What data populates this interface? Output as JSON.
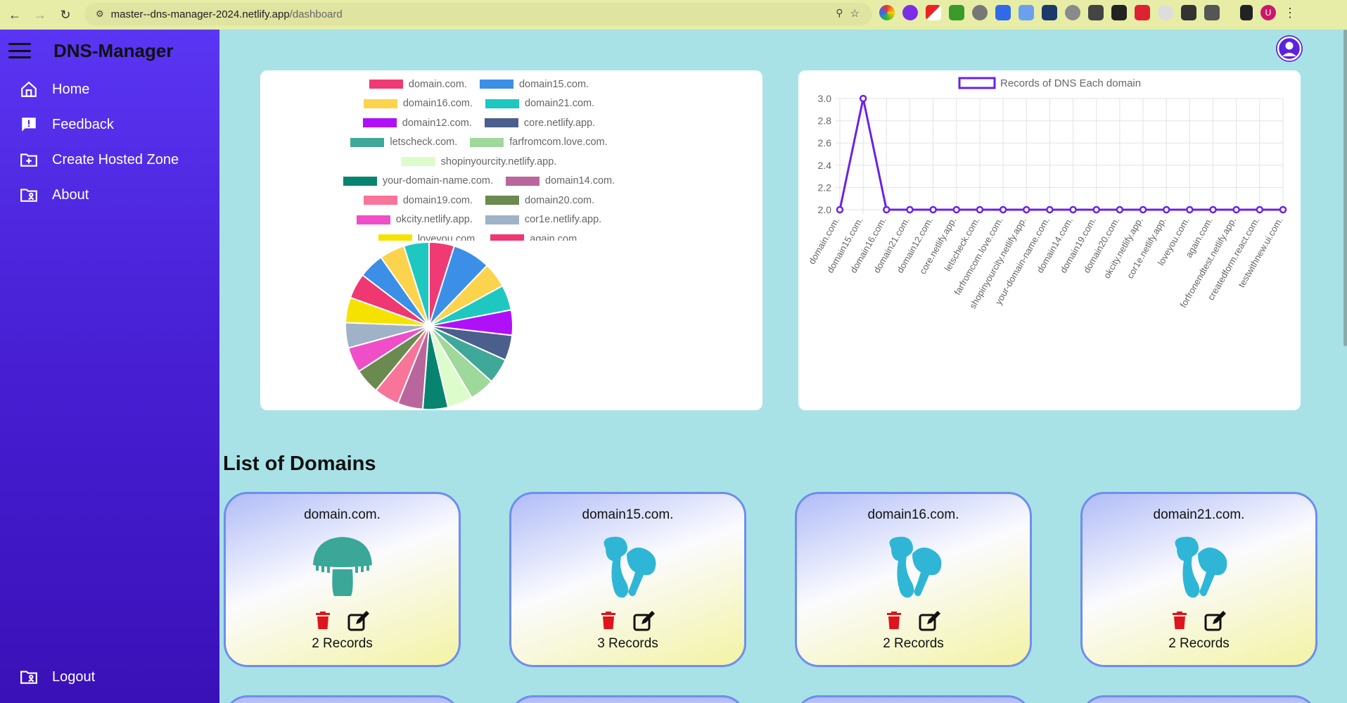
{
  "browser": {
    "url_host": "master--dns-manager-2024.netlify.app",
    "url_path": "/dashboard",
    "profile_initial": "U"
  },
  "sidebar": {
    "brand": "DNS-Manager",
    "items": [
      {
        "label": "Home",
        "icon": "home-icon"
      },
      {
        "label": "Feedback",
        "icon": "feedback-icon"
      },
      {
        "label": "Create Hosted Zone",
        "icon": "folder-add-icon"
      },
      {
        "label": "About",
        "icon": "folder-user-icon"
      }
    ],
    "logout": "Logout"
  },
  "pie_legend": [
    [
      {
        "label": "domain.com.",
        "color": "#f03a73"
      },
      {
        "label": "domain15.com.",
        "color": "#3b8fe6"
      }
    ],
    [
      {
        "label": "domain16.com.",
        "color": "#fcd34d"
      },
      {
        "label": "domain21.com.",
        "color": "#1ec8c0"
      }
    ],
    [
      {
        "label": "domain12.com.",
        "color": "#b010f8"
      },
      {
        "label": "core.netlify.app.",
        "color": "#4a5f8c"
      }
    ],
    [
      {
        "label": "letscheck.com.",
        "color": "#40a898"
      },
      {
        "label": "farfromcom.love.com.",
        "color": "#9ed89a"
      }
    ],
    [
      {
        "label": "shopinyourcity.netlify.app.",
        "color": "#dcfccb"
      }
    ],
    [
      {
        "label": "your-domain-name.com.",
        "color": "#078470"
      },
      {
        "label": "domain14.com.",
        "color": "#b9669c"
      }
    ],
    [
      {
        "label": "domain19.com.",
        "color": "#f87499"
      },
      {
        "label": "domain20.com.",
        "color": "#6a8a50"
      }
    ],
    [
      {
        "label": "okcity.netlify.app.",
        "color": "#f04ec8"
      },
      {
        "label": "cor1e.netlify.app.",
        "color": "#9fb2c8"
      }
    ],
    [
      {
        "label": "loveyou.com.",
        "color": "#f6e200"
      },
      {
        "label": "again.com.",
        "color": "#ef3772"
      }
    ]
  ],
  "chart_data": {
    "type": "line",
    "title": "",
    "legend": "Records of DNS Each domain",
    "legend_placement": "top",
    "grid": true,
    "categories": [
      "domain.com.",
      "domain15.com.",
      "domain16.com.",
      "domain21.com.",
      "domain12.com.",
      "core.netlify.app.",
      "letscheck.com.",
      "farfromcom.love.com.",
      "shopinyourcity.netlify.app.",
      "your-domain-name.com.",
      "domain14.com.",
      "domain19.com.",
      "domain20.com.",
      "okcity.netlify.app.",
      "cor1e.netlify.app.",
      "loveyou.com.",
      "again.com.",
      "forfronendtest.netlify.app.",
      "createdform.react.com.",
      "testwithnew.ui.com."
    ],
    "series": [
      {
        "name": "Records of DNS Each domain",
        "values": [
          2,
          3,
          2,
          2,
          2,
          2,
          2,
          2,
          2,
          2,
          2,
          2,
          2,
          2,
          2,
          2,
          2,
          2,
          2,
          2
        ],
        "color": "#6a22e6"
      }
    ],
    "ylim": [
      2.0,
      3.0
    ],
    "yticks": [
      "2.0",
      "2.2",
      "2.4",
      "2.6",
      "2.8",
      "3.0"
    ]
  },
  "pie_chart": {
    "type": "pie",
    "labels": [
      "domain.com.",
      "domain15.com.",
      "domain16.com.",
      "domain21.com.",
      "domain12.com.",
      "core.netlify.app.",
      "letscheck.com.",
      "farfromcom.love.com.",
      "shopinyourcity.netlify.app.",
      "your-domain-name.com.",
      "domain14.com.",
      "domain19.com.",
      "domain20.com.",
      "okcity.netlify.app.",
      "cor1e.netlify.app.",
      "loveyou.com.",
      "again.com.",
      "forfronendtest.netlify.app.",
      "createdform.react.com.",
      "testwithnew.ui.com."
    ],
    "values": [
      2,
      3,
      2,
      2,
      2,
      2,
      2,
      2,
      2,
      2,
      2,
      2,
      2,
      2,
      2,
      2,
      2,
      2,
      2,
      2
    ],
    "colors": [
      "#f03a73",
      "#3b8fe6",
      "#fcd34d",
      "#1ec8c0",
      "#b010f8",
      "#4a5f8c",
      "#40a898",
      "#9ed89a",
      "#dcfccb",
      "#078470",
      "#b9669c",
      "#f87499",
      "#6a8a50",
      "#f04ec8",
      "#9fb2c8",
      "#f6e200",
      "#ef3772",
      "#3b8fe6",
      "#fcd34d",
      "#1ec8c0"
    ]
  },
  "domains_section": {
    "title": "List of Domains",
    "cards": [
      {
        "name": "domain.com.",
        "records": "2 Records",
        "mushroom_color": "#3aa798",
        "mushroom": "cap"
      },
      {
        "name": "domain15.com.",
        "records": "3 Records",
        "mushroom_color": "#2fb6d6",
        "mushroom": "cluster"
      },
      {
        "name": "domain16.com.",
        "records": "2 Records",
        "mushroom_color": "#2fb6d6",
        "mushroom": "cluster"
      },
      {
        "name": "domain21.com.",
        "records": "2 Records",
        "mushroom_color": "#2fb6d6",
        "mushroom": "cluster"
      }
    ]
  }
}
